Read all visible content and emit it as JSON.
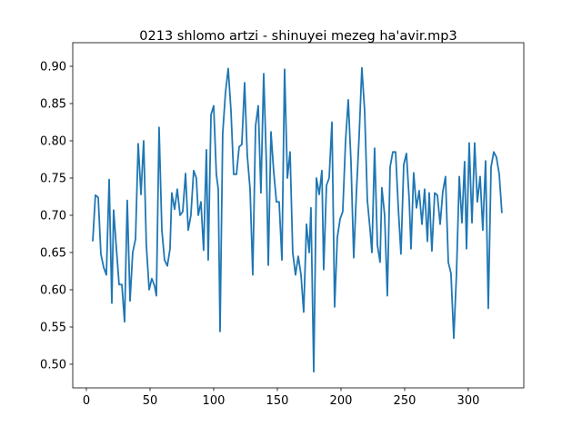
{
  "chart_data": {
    "type": "line",
    "title": "0213 shlomo artzi - shinuyei mezeg ha'avir.mp3",
    "x": [
      5,
      7.1,
      9.3,
      11.4,
      13.6,
      15.7,
      17.9,
      20,
      21.4,
      23.6,
      25.7,
      27.9,
      30,
      32.1,
      34.3,
      36.4,
      38.6,
      40.7,
      42.9,
      45,
      47.1,
      49.3,
      51.4,
      53.6,
      55,
      57.1,
      59.3,
      61.4,
      63.6,
      65.7,
      67.1,
      69.3,
      71.4,
      73.6,
      75.7,
      77.9,
      80,
      82.1,
      84.3,
      86.4,
      87.9,
      90,
      92.1,
      94.3,
      95.7,
      97.9,
      100,
      102.1,
      103.6,
      105,
      107.1,
      109.3,
      111.4,
      113.6,
      115.7,
      117.9,
      120,
      122.1,
      124.3,
      126.4,
      128.6,
      130.7,
      132.9,
      135,
      137.1,
      139.3,
      141.4,
      142.9,
      145,
      147.1,
      149.3,
      151.4,
      153.6,
      155.7,
      157.9,
      160,
      162.1,
      164.3,
      166.4,
      168.6,
      170.7,
      172.9,
      175,
      176.4,
      178.6,
      180.7,
      182.9,
      185,
      186.4,
      188.6,
      190.7,
      192.9,
      195,
      197.1,
      199.3,
      201.4,
      203.6,
      205.7,
      207.9,
      210,
      212.1,
      214.3,
      216.4,
      218.6,
      220.7,
      222.9,
      224.3,
      226.4,
      228.6,
      230.7,
      232.1,
      234.3,
      236.4,
      238.6,
      240.7,
      242.9,
      245,
      247.1,
      249.3,
      251.4,
      253.6,
      255,
      257.1,
      259.3,
      261.4,
      263.6,
      265.7,
      267.9,
      269.3,
      271.4,
      273.6,
      275.7,
      277.9,
      280,
      282.1,
      284.3,
      286.4,
      288.6,
      290.7,
      292.9,
      295,
      297.1,
      298.6,
      300.7,
      302.9,
      305,
      307.1,
      309.3,
      311.4,
      313.6,
      315.7,
      317.9,
      320,
      322.1,
      324.3,
      326.4
    ],
    "series": [
      {
        "color": "#1f77b4",
        "values": [
          0.665,
          0.727,
          0.724,
          0.648,
          0.63,
          0.62,
          0.748,
          0.582,
          0.707,
          0.655,
          0.607,
          0.607,
          0.557,
          0.72,
          0.585,
          0.65,
          0.668,
          0.796,
          0.728,
          0.8,
          0.66,
          0.6,
          0.615,
          0.605,
          0.592,
          0.818,
          0.68,
          0.64,
          0.632,
          0.655,
          0.73,
          0.708,
          0.735,
          0.7,
          0.705,
          0.756,
          0.68,
          0.7,
          0.76,
          0.75,
          0.7,
          0.718,
          0.653,
          0.788,
          0.64,
          0.835,
          0.847,
          0.755,
          0.735,
          0.544,
          0.81,
          0.865,
          0.897,
          0.84,
          0.755,
          0.755,
          0.792,
          0.795,
          0.878,
          0.78,
          0.735,
          0.62,
          0.82,
          0.847,
          0.73,
          0.89,
          0.77,
          0.633,
          0.812,
          0.76,
          0.718,
          0.718,
          0.64,
          0.896,
          0.75,
          0.785,
          0.65,
          0.62,
          0.645,
          0.62,
          0.57,
          0.688,
          0.65,
          0.71,
          0.49,
          0.75,
          0.728,
          0.76,
          0.627,
          0.74,
          0.75,
          0.825,
          0.577,
          0.67,
          0.695,
          0.705,
          0.8,
          0.855,
          0.77,
          0.643,
          0.73,
          0.808,
          0.898,
          0.84,
          0.72,
          0.68,
          0.65,
          0.79,
          0.66,
          0.637,
          0.737,
          0.7,
          0.592,
          0.765,
          0.785,
          0.785,
          0.71,
          0.648,
          0.768,
          0.783,
          0.72,
          0.655,
          0.757,
          0.71,
          0.733,
          0.688,
          0.735,
          0.665,
          0.73,
          0.652,
          0.73,
          0.727,
          0.688,
          0.732,
          0.752,
          0.637,
          0.622,
          0.535,
          0.62,
          0.752,
          0.69,
          0.772,
          0.655,
          0.797,
          0.69,
          0.797,
          0.718,
          0.752,
          0.68,
          0.773,
          0.575,
          0.765,
          0.785,
          0.778,
          0.755,
          0.703
        ]
      }
    ],
    "xlim": [
      -10.7,
      343.6
    ],
    "ylim": [
      0.4683,
      0.9317
    ],
    "xticks": [
      0,
      50,
      100,
      150,
      200,
      250,
      300
    ],
    "yticks": [
      {
        "value": 0.5,
        "label": "0.50"
      },
      {
        "value": 0.55,
        "label": "0.55"
      },
      {
        "value": 0.6,
        "label": "0.60"
      },
      {
        "value": 0.65,
        "label": "0.65"
      },
      {
        "value": 0.7,
        "label": "0.70"
      },
      {
        "value": 0.75,
        "label": "0.75"
      },
      {
        "value": 0.8,
        "label": "0.80"
      },
      {
        "value": 0.85,
        "label": "0.85"
      },
      {
        "value": 0.9,
        "label": "0.90"
      }
    ]
  }
}
